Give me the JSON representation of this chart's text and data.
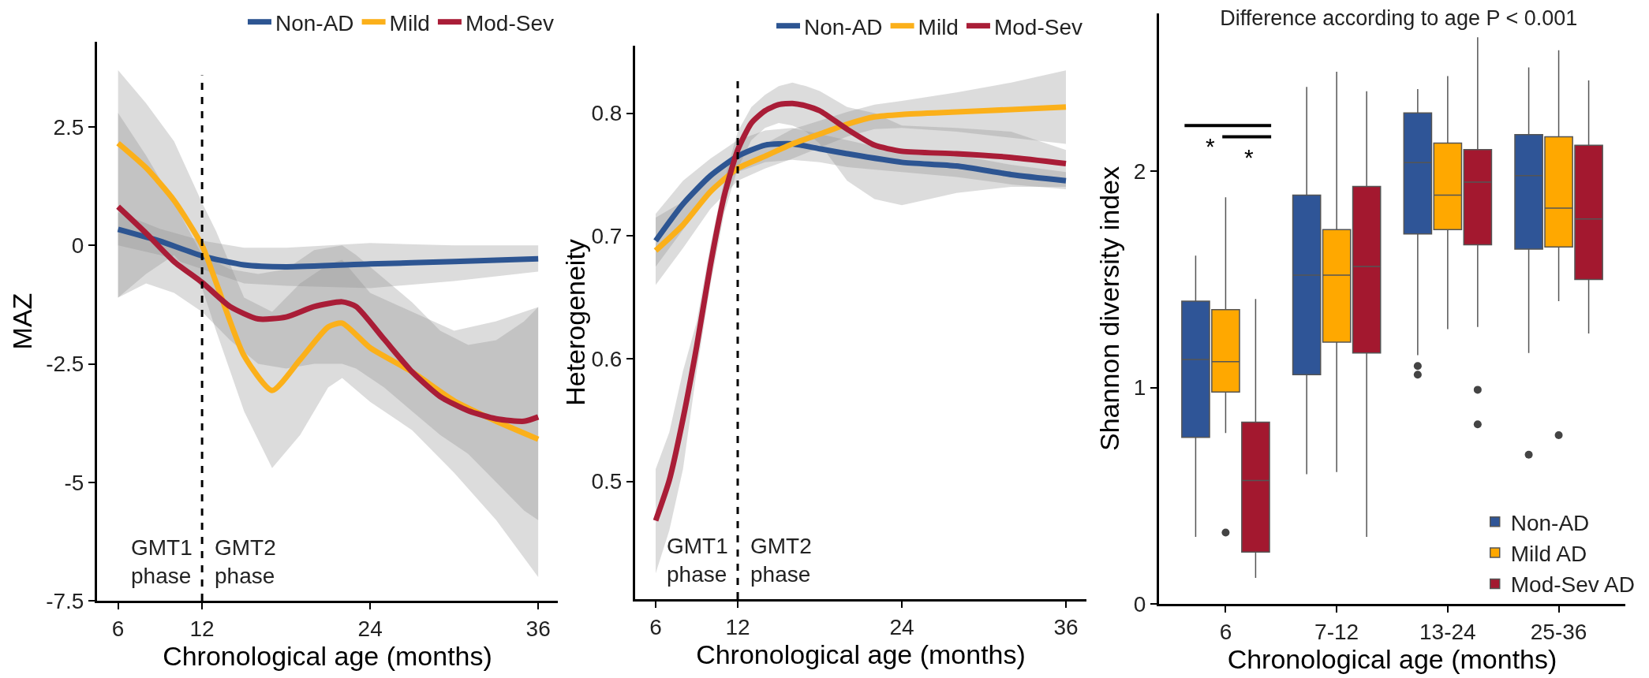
{
  "chart_data": [
    {
      "type": "line",
      "ylabel": "MAZ",
      "xlabel": "Chronological age (months)",
      "xlim": [
        4.5,
        37.4
      ],
      "xticks": [
        6,
        12,
        24,
        36
      ],
      "ylim": [
        -7.5,
        4.3
      ],
      "yticks": [
        2.5,
        0.0,
        -2.5,
        -5.0,
        -7.5
      ],
      "legend": "top",
      "ref_lines": [
        {
          "axis": "x",
          "value": 12,
          "line_style": "dashed",
          "color": "#000000"
        }
      ],
      "annotations": [
        "GMT1\nphase",
        "GMT2\nphase"
      ],
      "series": [
        {
          "name": "Non-AD",
          "color": "#2d5592",
          "x": [
            6,
            9,
            12,
            15,
            18,
            24,
            30,
            36
          ],
          "values": [
            0.34,
            0.09,
            -0.22,
            -0.41,
            -0.45,
            -0.39,
            -0.34,
            -0.28
          ],
          "lower": [
            0.0,
            -0.2,
            -0.5,
            -0.8,
            -0.85,
            -0.9,
            -0.75,
            -0.55
          ],
          "upper": [
            0.7,
            0.35,
            0.1,
            -0.05,
            -0.05,
            0.05,
            0.0,
            0.0
          ]
        },
        {
          "name": "Mild",
          "color": "#fbb01a",
          "x": [
            6,
            8,
            10,
            12,
            13,
            15,
            17,
            19,
            21,
            22,
            24,
            27,
            30,
            33,
            36
          ],
          "values": [
            2.16,
            1.64,
            0.95,
            0,
            -0.78,
            -2.33,
            -3.06,
            -2.41,
            -1.72,
            -1.64,
            -2.16,
            -2.67,
            -3.28,
            -3.71,
            -4.09
          ],
          "lower": [
            -1.1,
            -0.6,
            -0.2,
            -0.9,
            -1.8,
            -3.5,
            -4.7,
            -4.0,
            -3.0,
            -2.8,
            -3.3,
            -3.9,
            -4.8,
            -5.8,
            -7.0
          ],
          "upper": [
            3.7,
            3.0,
            2.2,
            0.9,
            0.3,
            -1.1,
            -1.4,
            -0.8,
            -0.4,
            -0.3,
            -1.0,
            -1.4,
            -1.8,
            -1.6,
            -1.3
          ]
        },
        {
          "name": "Mod-Sev",
          "color": "#a91d37",
          "x": [
            6,
            8,
            10,
            12,
            14,
            16,
            18,
            20,
            22,
            23,
            25,
            27,
            29,
            31,
            33,
            35,
            36
          ],
          "values": [
            0.82,
            0.26,
            -0.34,
            -0.78,
            -1.29,
            -1.55,
            -1.51,
            -1.29,
            -1.19,
            -1.29,
            -1.98,
            -2.67,
            -3.19,
            -3.49,
            -3.66,
            -3.71,
            -3.62
          ],
          "lower": [
            -1.1,
            -0.8,
            -1.0,
            -1.4,
            -2.0,
            -2.5,
            -2.6,
            -2.5,
            -2.5,
            -2.6,
            -3.0,
            -3.5,
            -4.0,
            -4.4,
            -5.0,
            -5.6,
            -5.8
          ],
          "upper": [
            2.8,
            1.9,
            0.9,
            -0.2,
            -0.5,
            -0.6,
            -0.5,
            -0.1,
            0.0,
            -0.2,
            -0.7,
            -1.2,
            -1.8,
            -2.1,
            -2.0,
            -1.6,
            -1.3
          ]
        }
      ]
    },
    {
      "type": "line",
      "ylabel": "Heterogeneity",
      "xlabel": "Chronological age (months)",
      "xlim": [
        4.5,
        37.5
      ],
      "xticks": [
        6,
        12,
        24,
        36
      ],
      "ylim": [
        0.404,
        0.855
      ],
      "yticks": [
        0.5,
        0.6,
        0.7,
        0.8
      ],
      "legend": "top",
      "ref_lines": [
        {
          "axis": "x",
          "value": 12,
          "line_style": "dashed",
          "color": "#000000"
        }
      ],
      "annotations": [
        "GMT1\nphase",
        "GMT2\nphase"
      ],
      "series": [
        {
          "name": "Non-AD",
          "color": "#2d5592",
          "x": [
            6,
            8,
            10,
            12,
            14,
            16,
            18,
            20,
            24,
            28,
            32,
            36
          ],
          "values": [
            0.696,
            0.726,
            0.749,
            0.765,
            0.774,
            0.775,
            0.771,
            0.767,
            0.76,
            0.757,
            0.75,
            0.745
          ],
          "lower": [
            0.675,
            0.705,
            0.735,
            0.752,
            0.76,
            0.762,
            0.76,
            0.756,
            0.752,
            0.748,
            0.742,
            0.738
          ],
          "upper": [
            0.718,
            0.745,
            0.763,
            0.778,
            0.786,
            0.788,
            0.783,
            0.778,
            0.768,
            0.766,
            0.758,
            0.752
          ]
        },
        {
          "name": "Mild",
          "color": "#fbb01a",
          "x": [
            6,
            8,
            10,
            12,
            14,
            16,
            18,
            20,
            22,
            24,
            28,
            32,
            36
          ],
          "values": [
            0.688,
            0.709,
            0.736,
            0.755,
            0.765,
            0.775,
            0.783,
            0.791,
            0.797,
            0.799,
            0.801,
            0.803,
            0.805
          ],
          "lower": [
            0.66,
            0.69,
            0.722,
            0.745,
            0.755,
            0.763,
            0.772,
            0.781,
            0.787,
            0.788,
            0.785,
            0.78,
            0.775
          ],
          "upper": [
            0.715,
            0.728,
            0.75,
            0.765,
            0.775,
            0.787,
            0.794,
            0.801,
            0.807,
            0.81,
            0.817,
            0.825,
            0.835
          ]
        },
        {
          "name": "Mod-Sev",
          "color": "#a91d37",
          "x": [
            6,
            7,
            8,
            9,
            10,
            11,
            12,
            13,
            14,
            15,
            16,
            17,
            18,
            20,
            22,
            24,
            28,
            32,
            36
          ],
          "values": [
            0.468,
            0.501,
            0.551,
            0.61,
            0.676,
            0.732,
            0.77,
            0.792,
            0.802,
            0.807,
            0.808,
            0.806,
            0.802,
            0.787,
            0.774,
            0.769,
            0.767,
            0.764,
            0.759
          ],
          "lower": [
            0.425,
            0.46,
            0.51,
            0.59,
            0.66,
            0.718,
            0.755,
            0.778,
            0.788,
            0.792,
            0.79,
            0.785,
            0.775,
            0.745,
            0.73,
            0.725,
            0.735,
            0.74,
            0.74
          ],
          "upper": [
            0.51,
            0.54,
            0.59,
            0.63,
            0.692,
            0.745,
            0.785,
            0.805,
            0.815,
            0.822,
            0.825,
            0.822,
            0.818,
            0.805,
            0.8,
            0.79,
            0.788,
            0.785,
            0.77
          ]
        }
      ]
    },
    {
      "type": "box",
      "title": "Difference according to age P < 0.001",
      "ylabel": "Shannon diversity index",
      "xlabel": "Chronological age (months)",
      "categories": [
        "6",
        "7-12",
        "13-24",
        "25-36"
      ],
      "ylim": [
        0,
        2.73
      ],
      "yticks": [
        0,
        1,
        2
      ],
      "legend": "bottom right",
      "annotations": [
        "*",
        "*"
      ],
      "series": [
        {
          "name": "Non-AD",
          "color": "#2f5597",
          "boxes": [
            {
              "low": 0.31,
              "q1": 0.77,
              "median": 1.13,
              "q3": 1.4,
              "high": 1.61
            },
            {
              "low": 0.6,
              "q1": 1.06,
              "median": 1.52,
              "q3": 1.89,
              "high": 2.39
            },
            {
              "low": 1.15,
              "q1": 1.71,
              "median": 2.04,
              "q3": 2.27,
              "high": 2.38,
              "outliers": [
                1.1,
                1.06
              ]
            },
            {
              "low": 1.16,
              "q1": 1.64,
              "median": 1.98,
              "q3": 2.17,
              "high": 2.48,
              "outliers": [
                0.69
              ]
            }
          ]
        },
        {
          "name": "Mild AD",
          "color": "#ffa800",
          "boxes": [
            {
              "low": 0.79,
              "q1": 0.98,
              "median": 1.12,
              "q3": 1.36,
              "high": 1.88,
              "outliers": [
                0.33
              ]
            },
            {
              "low": 0.61,
              "q1": 1.21,
              "median": 1.52,
              "q3": 1.73,
              "high": 2.46
            },
            {
              "low": 1.27,
              "q1": 1.73,
              "median": 1.89,
              "q3": 2.13,
              "high": 2.44
            },
            {
              "low": 1.4,
              "q1": 1.65,
              "median": 1.83,
              "q3": 2.16,
              "high": 2.56,
              "outliers": [
                0.78
              ]
            }
          ]
        },
        {
          "name": "Mod-Sev AD",
          "color": "#a3182f",
          "boxes": [
            {
              "low": 0.12,
              "q1": 0.24,
              "median": 0.57,
              "q3": 0.84,
              "high": 1.41
            },
            {
              "low": 0.31,
              "q1": 1.16,
              "median": 1.56,
              "q3": 1.93,
              "high": 2.37
            },
            {
              "low": 1.28,
              "q1": 1.66,
              "median": 1.95,
              "q3": 2.1,
              "high": 2.62,
              "outliers": [
                0.99,
                0.83
              ]
            },
            {
              "low": 1.25,
              "q1": 1.5,
              "median": 1.78,
              "q3": 2.12,
              "high": 2.42
            }
          ]
        }
      ]
    }
  ]
}
